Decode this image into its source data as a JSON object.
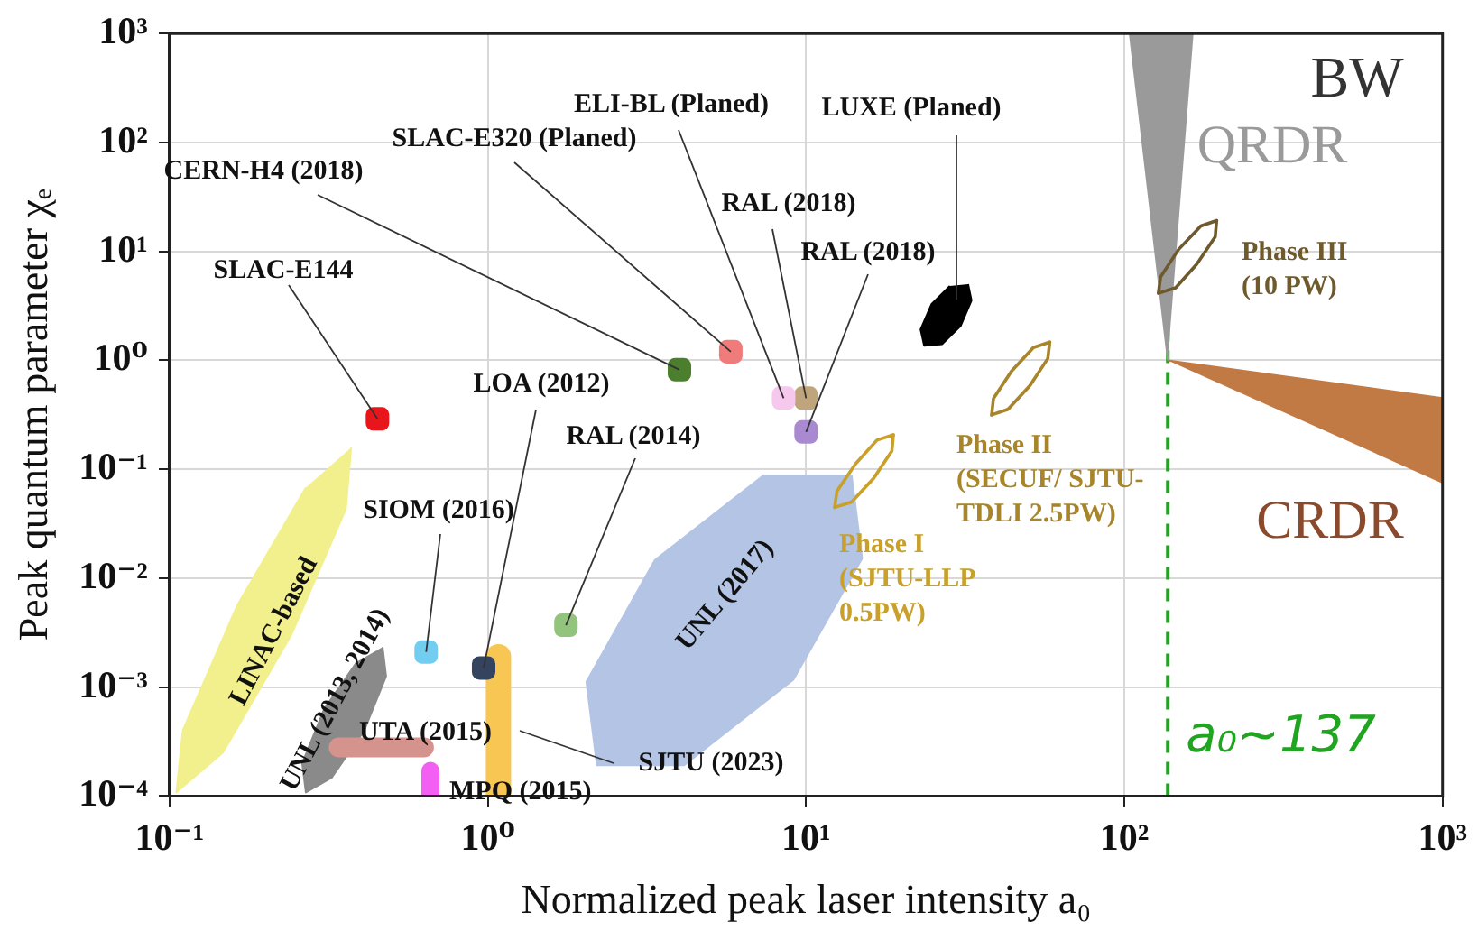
{
  "chart_data": {
    "type": "scatter",
    "xlabel": "Normalized peak laser intensity a₀",
    "ylabel": "Peak quantum parameter χₑ",
    "log": "xy",
    "xlim": [
      0.1,
      1000
    ],
    "ylim": [
      0.0001,
      1000
    ],
    "xticks": [
      {
        "value": 0.1,
        "label": "10⁻¹"
      },
      {
        "value": 1,
        "label": "10⁰"
      },
      {
        "value": 10,
        "label": "10¹"
      },
      {
        "value": 100,
        "label": "10²"
      },
      {
        "value": 1000,
        "label": "10³"
      }
    ],
    "yticks": [
      {
        "value": 0.0001,
        "label": "10⁻⁴"
      },
      {
        "value": 0.001,
        "label": "10⁻³"
      },
      {
        "value": 0.01,
        "label": "10⁻²"
      },
      {
        "value": 0.1,
        "label": "10⁻¹"
      },
      {
        "value": 1,
        "label": "10⁰"
      },
      {
        "value": 10,
        "label": "10¹"
      },
      {
        "value": 100,
        "label": "10²"
      },
      {
        "value": 1000,
        "label": "10³"
      }
    ],
    "grid": true,
    "legend": false,
    "ref_lines": [
      {
        "axis": "x",
        "value": 137,
        "label": "a₀~137",
        "color": "#1fa51f",
        "line_style": "dashed"
      }
    ],
    "annotations": [
      "BW"
    ],
    "series": [
      {
        "name": "SLAC-E144",
        "color": "#e8161b",
        "marker": "square",
        "x": [
          0.45
        ],
        "values": [
          0.29
        ]
      },
      {
        "name": "CERN-H4 (2018)",
        "color": "#4b7f2e",
        "marker": "square",
        "x": [
          4.0
        ],
        "values": [
          0.82
        ]
      },
      {
        "name": "SLAC-E320 (Planed)",
        "color": "#f07b7b",
        "marker": "square",
        "x": [
          5.8
        ],
        "values": [
          1.2
        ]
      },
      {
        "name": "ELI-BL (Planed)",
        "color": "#f6c8ee",
        "marker": "square",
        "x": [
          8.5
        ],
        "values": [
          0.45
        ]
      },
      {
        "name": "RAL (2018)",
        "color": "#c0a57c",
        "marker": "square",
        "x": [
          10
        ],
        "values": [
          0.45
        ]
      },
      {
        "name": "RAL (2018)",
        "color": "#a98ad0",
        "marker": "square",
        "x": [
          10
        ],
        "values": [
          0.22
        ]
      },
      {
        "name": "LOA (2012)",
        "color": "#34445e",
        "marker": "square",
        "x": [
          0.97
        ],
        "values": [
          0.0015
        ]
      },
      {
        "name": "RAL (2014)",
        "color": "#93c47d",
        "marker": "square",
        "x": [
          1.76
        ],
        "values": [
          0.0037
        ]
      },
      {
        "name": "SIOM (2016)",
        "color": "#73cdf0",
        "marker": "square",
        "x": [
          0.64
        ],
        "values": [
          0.0021
        ]
      },
      {
        "name": "MPQ (2015)",
        "color": "#f25ff2",
        "type": "line",
        "x": [
          0.66,
          0.66
        ],
        "values": [
          0.0001,
          0.00017
        ]
      },
      {
        "name": "UTA (2015)",
        "color": "#d4938c",
        "type": "line",
        "x": [
          0.34,
          0.63
        ],
        "values": [
          0.00028,
          0.00028
        ]
      },
      {
        "name": "SJTU (2023)",
        "color": "#f7c653",
        "type": "line",
        "x": [
          1.08,
          1.08
        ],
        "values": [
          0.0001,
          0.0019
        ]
      },
      {
        "name": "LINAC-based",
        "color": "#f2f08c",
        "type": "area",
        "x": [
          0.372,
          0.358,
          0.241,
          0.147,
          0.105,
          0.11,
          0.163,
          0.268
        ],
        "values": [
          0.158,
          0.043,
          0.003,
          0.00025,
          0.000108,
          0.0004,
          0.0056,
          0.068
        ]
      },
      {
        "name": "UNL (2013, 2014)",
        "color": "#8a8a8a",
        "type": "area",
        "x": [
          0.467,
          0.479,
          0.409,
          0.323,
          0.268,
          0.261,
          0.306,
          0.388
        ],
        "values": [
          0.00233,
          0.00126,
          0.0004,
          0.000147,
          0.000108,
          0.0002,
          0.00063,
          0.00171
        ]
      },
      {
        "name": "UNL (2017)",
        "color": "#b3c4e4",
        "type": "area",
        "x": [
          13.9,
          15.0,
          9.12,
          4.14,
          2.2,
          2.04,
          3.35,
          7.39
        ],
        "values": [
          0.089,
          0.0152,
          0.00117,
          0.000192,
          0.000192,
          0.00112,
          0.0147,
          0.089
        ]
      },
      {
        "name": "Phase I\n(SJTU-LLP\n0.5PW)",
        "color": "#c8a02a",
        "type": "line",
        "x": [
          12.3,
          12.5,
          14.3,
          16.7,
          18.8
        ],
        "values": [
          0.0447,
          0.063,
          0.112,
          0.185,
          0.207
        ]
      },
      {
        "name": "Phase II\n(SECUF/ SJTU-\nTDLI 2.5PW)",
        "color": "#a8852a",
        "type": "line",
        "x": [
          38.3,
          38.8,
          44.2,
          51.8,
          58.3
        ],
        "values": [
          0.316,
          0.447,
          0.794,
          1.31,
          1.47
        ]
      },
      {
        "name": "Phase III\n(10 PW)",
        "color": "#6e5a2c",
        "type": "line",
        "x": [
          128,
          130,
          148,
          174,
          195
        ],
        "values": [
          4.14,
          5.84,
          10.4,
          17.1,
          19.2
        ]
      },
      {
        "name": "LUXE (Planed)",
        "color": "#000000",
        "type": "area",
        "x": [
          32.3,
          33.1,
          30.6,
          26.8,
          23.5,
          22.9,
          24.8,
          28.3
        ],
        "values": [
          5.01,
          3.55,
          2.07,
          1.41,
          1.36,
          1.92,
          3.29,
          4.82
        ]
      },
      {
        "name": "QRDR",
        "color": "#9a9a9a",
        "type": "area",
        "x": [
          137,
          104,
          165
        ],
        "values": [
          1,
          1000,
          1000
        ]
      },
      {
        "name": "CRDR",
        "color": "#c27a45",
        "type": "area",
        "x": [
          137,
          1000,
          1000
        ],
        "values": [
          1,
          0.45,
          0.074
        ]
      },
      {
        "color": "#c8a02a",
        "type": "line",
        "x": [
          12.3,
          13.9,
          16.3,
          18.6,
          18.8
        ],
        "values": [
          0.0447,
          0.05,
          0.0826,
          0.147,
          0.207
        ]
      },
      {
        "color": "#a8852a",
        "type": "line",
        "x": [
          38.3,
          43.1,
          50.5,
          57.5,
          58.3
        ],
        "values": [
          0.316,
          0.355,
          0.585,
          1.04,
          1.47
        ]
      },
      {
        "color": "#6e5a2c",
        "type": "line",
        "x": [
          128,
          145,
          169,
          193,
          195
        ],
        "values": [
          4.14,
          4.64,
          7.64,
          13.6,
          19.2
        ]
      }
    ]
  }
}
